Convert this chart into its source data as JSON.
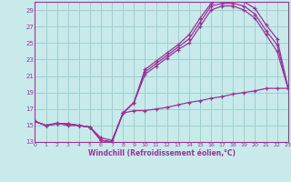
{
  "xlabel": "Windchill (Refroidissement éolien,°C)",
  "bg_color": "#c8eaea",
  "line_color": "#993399",
  "grid_color": "#99cccc",
  "xlim": [
    0,
    23
  ],
  "ylim": [
    13,
    30
  ],
  "xticks": [
    0,
    1,
    2,
    3,
    4,
    5,
    6,
    7,
    8,
    9,
    10,
    11,
    12,
    13,
    14,
    15,
    16,
    17,
    18,
    19,
    20,
    21,
    22,
    23
  ],
  "yticks": [
    13,
    15,
    17,
    19,
    21,
    23,
    25,
    27,
    29
  ],
  "curves": [
    {
      "x": [
        0,
        1,
        2,
        3,
        4,
        5,
        6,
        7,
        8,
        9,
        10,
        11,
        12,
        13,
        14,
        15,
        16,
        17,
        18,
        19,
        20,
        21,
        22,
        23
      ],
      "y": [
        15.5,
        15.0,
        15.2,
        15.2,
        15.0,
        14.8,
        13.2,
        13.0,
        16.5,
        17.8,
        21.8,
        22.8,
        23.8,
        24.8,
        26.0,
        28.0,
        29.8,
        30.2,
        30.2,
        30.0,
        29.2,
        27.2,
        25.5,
        19.5
      ]
    },
    {
      "x": [
        0,
        1,
        2,
        3,
        4,
        5,
        6,
        7,
        8,
        9,
        10,
        11,
        12,
        13,
        14,
        15,
        16,
        17,
        18,
        19,
        20,
        21,
        22,
        23
      ],
      "y": [
        15.5,
        15.0,
        15.2,
        15.2,
        15.0,
        14.8,
        13.2,
        13.0,
        16.5,
        17.8,
        21.5,
        22.5,
        23.5,
        24.5,
        25.5,
        27.5,
        29.5,
        29.8,
        29.8,
        29.5,
        28.5,
        26.5,
        24.8,
        19.5
      ]
    },
    {
      "x": [
        0,
        1,
        2,
        3,
        4,
        5,
        6,
        7,
        8,
        9,
        10,
        11,
        12,
        13,
        14,
        15,
        16,
        17,
        18,
        19,
        20,
        21,
        22,
        23
      ],
      "y": [
        15.5,
        15.0,
        15.2,
        15.2,
        15.0,
        14.8,
        13.2,
        13.0,
        16.5,
        17.8,
        21.2,
        22.2,
        23.2,
        24.2,
        25.0,
        27.0,
        29.0,
        29.5,
        29.5,
        29.0,
        28.0,
        26.0,
        24.0,
        19.5
      ]
    },
    {
      "x": [
        0,
        1,
        2,
        3,
        4,
        5,
        6,
        7,
        8,
        9,
        10,
        11,
        12,
        13,
        14,
        15,
        16,
        17,
        18,
        19,
        20,
        21,
        22,
        23
      ],
      "y": [
        15.5,
        15.0,
        15.3,
        15.0,
        15.0,
        14.8,
        13.5,
        13.2,
        16.5,
        16.8,
        16.8,
        17.0,
        17.2,
        17.5,
        17.8,
        18.0,
        18.3,
        18.5,
        18.8,
        19.0,
        19.2,
        19.5,
        19.5,
        19.5
      ]
    }
  ]
}
